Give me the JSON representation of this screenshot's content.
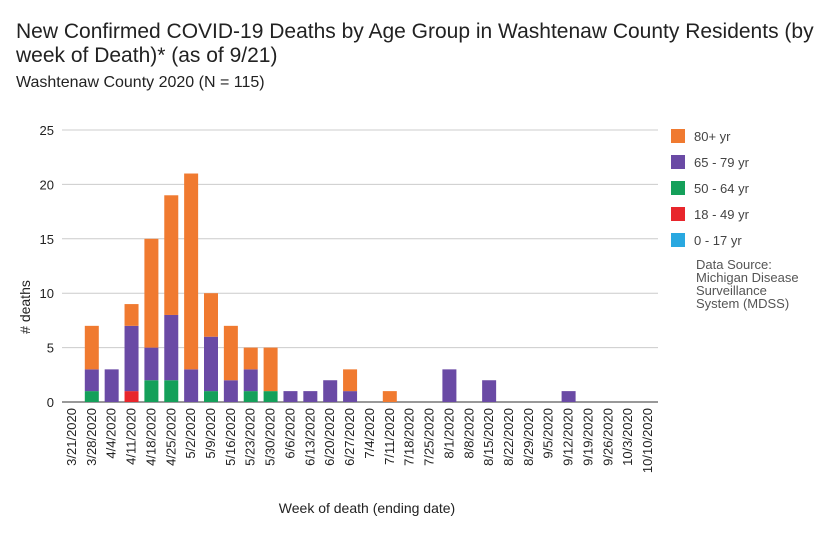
{
  "chart_data": {
    "type": "bar",
    "stacked": true,
    "title": "New Confirmed COVID-19 Deaths by Age Group in Washtenaw County Residents (by week of Death)* (as of 9/21)",
    "subtitle": "Washtenaw County 2020 (N = 115)",
    "xlabel": "Week of death (ending date)",
    "ylabel": "# deaths",
    "ylim": [
      0,
      25
    ],
    "yticks": [
      0,
      5,
      10,
      15,
      20,
      25
    ],
    "grid": true,
    "legend_position": "right",
    "categories": [
      "3/21/2020",
      "3/28/2020",
      "4/4/2020",
      "4/11/2020",
      "4/18/2020",
      "4/25/2020",
      "5/2/2020",
      "5/9/2020",
      "5/16/2020",
      "5/23/2020",
      "5/30/2020",
      "6/6/2020",
      "6/13/2020",
      "6/20/2020",
      "6/27/2020",
      "7/4/2020",
      "7/11/2020",
      "7/18/2020",
      "7/25/2020",
      "8/1/2020",
      "8/8/2020",
      "8/15/2020",
      "8/22/2020",
      "8/29/2020",
      "9/5/2020",
      "9/12/2020",
      "9/19/2020",
      "9/26/2020",
      "10/3/2020",
      "10/10/2020"
    ],
    "series": [
      {
        "name": "0 - 17 yr",
        "color": "#29a8e0",
        "values": [
          0,
          0,
          0,
          0,
          0,
          0,
          0,
          0,
          0,
          0,
          0,
          0,
          0,
          0,
          0,
          0,
          0,
          0,
          0,
          0,
          0,
          0,
          0,
          0,
          0,
          0,
          0,
          0,
          0,
          0
        ]
      },
      {
        "name": "18 - 49 yr",
        "color": "#e8262c",
        "values": [
          0,
          0,
          0,
          1,
          0,
          0,
          0,
          0,
          0,
          0,
          0,
          0,
          0,
          0,
          0,
          0,
          0,
          0,
          0,
          0,
          0,
          0,
          0,
          0,
          0,
          0,
          0,
          0,
          0,
          0
        ]
      },
      {
        "name": "50 - 64 yr",
        "color": "#14a05a",
        "values": [
          0,
          1,
          0,
          0,
          2,
          2,
          0,
          1,
          0,
          1,
          1,
          0,
          0,
          0,
          0,
          0,
          0,
          0,
          0,
          0,
          0,
          0,
          0,
          0,
          0,
          0,
          0,
          0,
          0,
          0
        ]
      },
      {
        "name": "65 - 79 yr",
        "color": "#6a4aa5",
        "values": [
          0,
          2,
          3,
          6,
          3,
          6,
          3,
          5,
          2,
          2,
          0,
          1,
          1,
          2,
          1,
          0,
          0,
          0,
          0,
          3,
          0,
          2,
          0,
          0,
          0,
          1,
          0,
          0,
          0,
          0
        ]
      },
      {
        "name": "80+ yr",
        "color": "#f07a30",
        "values": [
          0,
          4,
          0,
          2,
          10,
          11,
          18,
          4,
          5,
          2,
          4,
          0,
          0,
          0,
          2,
          0,
          1,
          0,
          0,
          0,
          0,
          0,
          0,
          0,
          0,
          0,
          0,
          0,
          0,
          0
        ]
      }
    ],
    "legend_order": [
      "80+ yr",
      "65 - 79 yr",
      "50 - 64 yr",
      "18 - 49 yr",
      "0 - 17 yr"
    ],
    "annotation": [
      "Data Source:",
      "Michigan Disease",
      "Surveillance",
      "System (MDSS)"
    ]
  }
}
